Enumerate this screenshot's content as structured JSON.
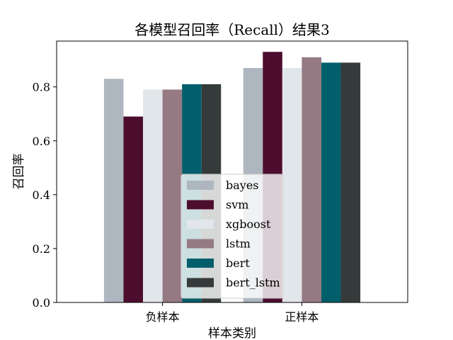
{
  "chart_data": {
    "type": "bar",
    "title": "各模型召回率（Recall）结果3",
    "xlabel": "样本类别",
    "ylabel": "召回率",
    "categories": [
      "负样本",
      "正样本"
    ],
    "ylim": [
      0,
      0.97
    ],
    "yticks": [
      "0.0",
      "0.2",
      "0.4",
      "0.6",
      "0.8"
    ],
    "grid": false,
    "legend_position": "lower center",
    "series": [
      {
        "name": "bayes",
        "color": "#aeb7bf",
        "values": [
          0.83,
          0.87
        ]
      },
      {
        "name": "svm",
        "color": "#4d0d2e",
        "values": [
          0.69,
          0.93
        ]
      },
      {
        "name": "xgboost",
        "color": "#e1e6ea",
        "values": [
          0.79,
          0.87
        ]
      },
      {
        "name": "lstm",
        "color": "#957a84",
        "values": [
          0.79,
          0.91
        ]
      },
      {
        "name": "bert",
        "color": "#005f6a",
        "values": [
          0.81,
          0.89
        ]
      },
      {
        "name": "bert_lstm",
        "color": "#353a3a",
        "values": [
          0.81,
          0.89
        ]
      }
    ]
  }
}
